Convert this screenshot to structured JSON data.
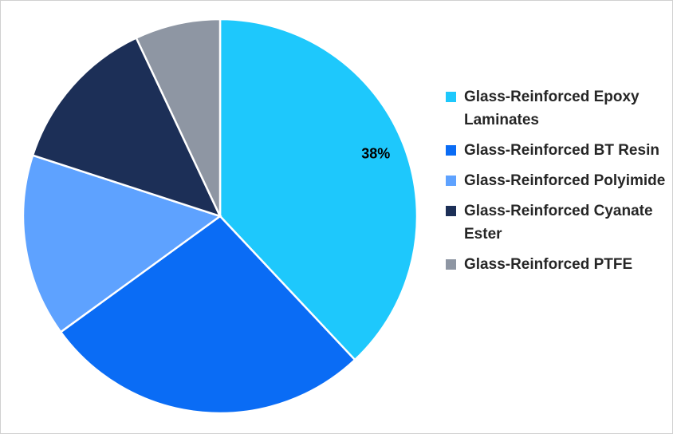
{
  "chart_data": {
    "type": "pie",
    "categories": [
      "Glass-Reinforced Epoxy Laminates",
      "Glass-Reinforced BT Resin",
      "Glass-Reinforced Polyimide",
      "Glass-Reinforced Cyanate Ester",
      "Glass-Reinforced PTFE"
    ],
    "values": [
      38,
      27,
      15,
      13,
      7
    ],
    "value_labels": [
      "38%",
      null,
      null,
      null,
      null
    ],
    "colors": [
      "#1ec8fc",
      "#0a6cf5",
      "#5ea2ff",
      "#1c2f57",
      "#8e96a3"
    ],
    "legend": "right"
  }
}
